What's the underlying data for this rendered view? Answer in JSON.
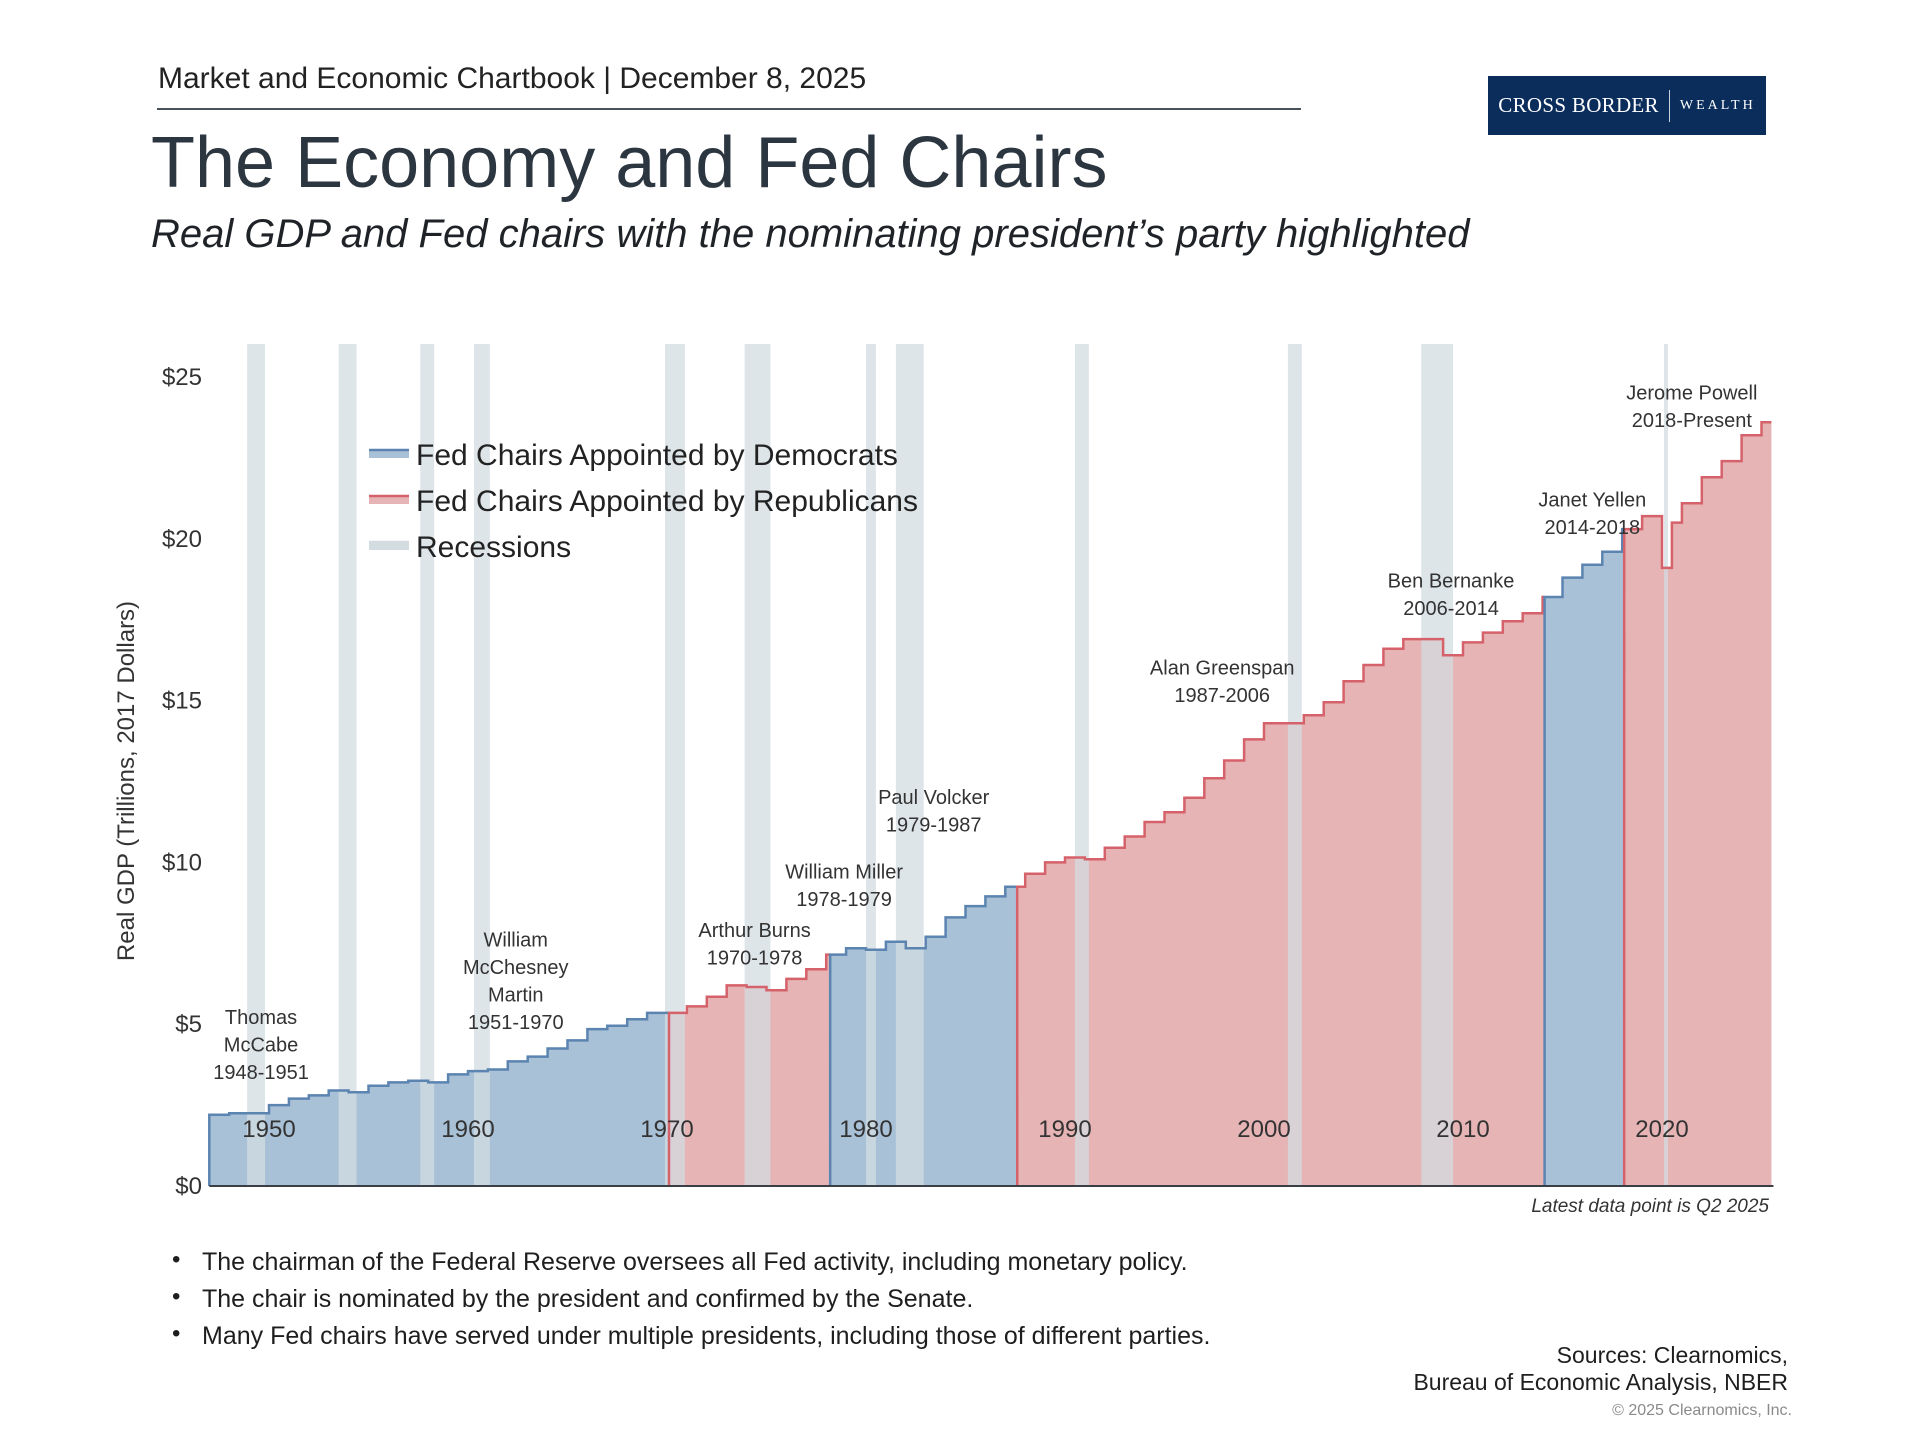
{
  "header": {
    "text": "Market and Economic Chartbook | December 8, 2025"
  },
  "logo": {
    "left": "CROSS BORDER",
    "right": "WEALTH"
  },
  "title": "The Economy and Fed Chairs",
  "subtitle": "Real GDP and Fed chairs with the nominating president’s party highlighted",
  "colors": {
    "democrat_line": "#5b84b1",
    "democrat_fill": "#a9c1d6",
    "republican_line": "#d5626a",
    "republican_fill": "#e6b4b4",
    "recession": "#d3dce1",
    "logo_bg": "#0b2d5c"
  },
  "chart_data": {
    "type": "area",
    "ylabel": "Real GDP (Trillions, 2017 Dollars)",
    "ylim": [
      0,
      25
    ],
    "xlim": [
      1947,
      2025.5
    ],
    "yticks": [
      {
        "v": 0,
        "label": "$0"
      },
      {
        "v": 5,
        "label": "$5"
      },
      {
        "v": 10,
        "label": "$10"
      },
      {
        "v": 15,
        "label": "$15"
      },
      {
        "v": 20,
        "label": "$20"
      },
      {
        "v": 25,
        "label": "$25"
      }
    ],
    "xticks": [
      {
        "v": 1950,
        "label": "1950"
      },
      {
        "v": 1960,
        "label": "1960"
      },
      {
        "v": 1970,
        "label": "1970"
      },
      {
        "v": 1980,
        "label": "1980"
      },
      {
        "v": 1990,
        "label": "1990"
      },
      {
        "v": 2000,
        "label": "2000"
      },
      {
        "v": 2010,
        "label": "2010"
      },
      {
        "v": 2020,
        "label": "2020"
      }
    ],
    "grid": false,
    "legend_position": "top-left",
    "legend": [
      {
        "label": "Fed Chairs Appointed by Democrats",
        "kind": "democrat"
      },
      {
        "label": "Fed Chairs Appointed by Republicans",
        "kind": "republican"
      },
      {
        "label": "Recessions",
        "kind": "recession"
      }
    ],
    "x": [
      1947,
      1948,
      1949,
      1950,
      1951,
      1952,
      1953,
      1954,
      1955,
      1956,
      1957,
      1958,
      1959,
      1960,
      1961,
      1962,
      1963,
      1964,
      1965,
      1966,
      1967,
      1968,
      1969,
      1970,
      1971,
      1972,
      1973,
      1974,
      1975,
      1976,
      1977,
      1978,
      1979,
      1980,
      1981,
      1982,
      1983,
      1984,
      1985,
      1986,
      1987,
      1988,
      1989,
      1990,
      1991,
      1992,
      1993,
      1994,
      1995,
      1996,
      1997,
      1998,
      1999,
      2000,
      2001,
      2002,
      2003,
      2004,
      2005,
      2006,
      2007,
      2008,
      2009,
      2010,
      2011,
      2012,
      2013,
      2014,
      2015,
      2016,
      2017,
      2018,
      2019,
      2020,
      2020.5,
      2021,
      2022,
      2023,
      2024,
      2025,
      2025.5
    ],
    "values": [
      2.2,
      2.25,
      2.25,
      2.5,
      2.7,
      2.8,
      2.95,
      2.9,
      3.1,
      3.2,
      3.25,
      3.2,
      3.45,
      3.55,
      3.6,
      3.85,
      4.0,
      4.25,
      4.5,
      4.85,
      4.95,
      5.15,
      5.35,
      5.35,
      5.55,
      5.85,
      6.2,
      6.15,
      6.05,
      6.4,
      6.7,
      7.15,
      7.35,
      7.3,
      7.55,
      7.35,
      7.7,
      8.3,
      8.65,
      8.95,
      9.25,
      9.65,
      10.0,
      10.15,
      10.1,
      10.45,
      10.8,
      11.25,
      11.55,
      12.0,
      12.6,
      13.15,
      13.8,
      14.3,
      14.3,
      14.55,
      14.95,
      15.6,
      16.1,
      16.6,
      16.9,
      16.9,
      16.4,
      16.8,
      17.1,
      17.45,
      17.7,
      18.2,
      18.8,
      19.2,
      19.6,
      20.3,
      20.7,
      19.1,
      20.5,
      21.1,
      21.9,
      22.4,
      23.2,
      23.6,
      23.75
    ],
    "party_segments": [
      {
        "start": 1947,
        "end": 1970.1,
        "party": "democrat"
      },
      {
        "start": 1970.1,
        "end": 1978.2,
        "party": "republican"
      },
      {
        "start": 1978.2,
        "end": 1987.6,
        "party": "democrat"
      },
      {
        "start": 1987.6,
        "end": 2014.1,
        "party": "republican"
      },
      {
        "start": 2014.1,
        "end": 2018.1,
        "party": "democrat"
      },
      {
        "start": 2018.1,
        "end": 2025.5,
        "party": "republican"
      }
    ],
    "recessions": [
      [
        1948.9,
        1949.8
      ],
      [
        1953.5,
        1954.4
      ],
      [
        1957.6,
        1958.3
      ],
      [
        1960.3,
        1961.1
      ],
      [
        1969.9,
        1970.9
      ],
      [
        1973.9,
        1975.2
      ],
      [
        1980.0,
        1980.5
      ],
      [
        1981.5,
        1982.9
      ],
      [
        1990.5,
        1991.2
      ],
      [
        2001.2,
        2001.9
      ],
      [
        2007.9,
        2009.5
      ],
      [
        2020.1,
        2020.3
      ]
    ],
    "annotations": [
      {
        "lines": [
          "Thomas",
          "McCabe",
          "1948-1951"
        ],
        "year": 1949.6,
        "value": 5.0
      },
      {
        "lines": [
          "William",
          "McChesney",
          "Martin",
          "1951-1970"
        ],
        "year": 1962.4,
        "value": 7.4
      },
      {
        "lines": [
          "Arthur Burns",
          "1970-1978"
        ],
        "year": 1974.4,
        "value": 7.7
      },
      {
        "lines": [
          "William Miller",
          "1978-1979"
        ],
        "year": 1978.9,
        "value": 9.5
      },
      {
        "lines": [
          "Paul Volcker",
          "1979-1987"
        ],
        "year": 1983.4,
        "value": 11.8
      },
      {
        "lines": [
          "Alan Greenspan",
          "1987-2006"
        ],
        "year": 1997.9,
        "value": 15.8
      },
      {
        "lines": [
          "Ben Bernanke",
          "2006-2014"
        ],
        "year": 2009.4,
        "value": 18.5
      },
      {
        "lines": [
          "Janet Yellen",
          "2014-2018"
        ],
        "year": 2016.5,
        "value": 21.0
      },
      {
        "lines": [
          "Jerome Powell",
          "2018-Present"
        ],
        "year": 2021.5,
        "value": 24.3
      }
    ]
  },
  "note": "Latest data point is Q2 2025",
  "bullets": [
    "The chairman of the Federal Reserve oversees all Fed activity, including monetary policy.",
    "The chair is nominated by the president and confirmed by the Senate.",
    "Many Fed chairs have served under multiple presidents, including those of different parties."
  ],
  "sources": {
    "line1": "Sources: Clearnomics,",
    "line2": "Bureau of Economic Analysis, NBER"
  },
  "copyright": "© 2025 Clearnomics, Inc."
}
